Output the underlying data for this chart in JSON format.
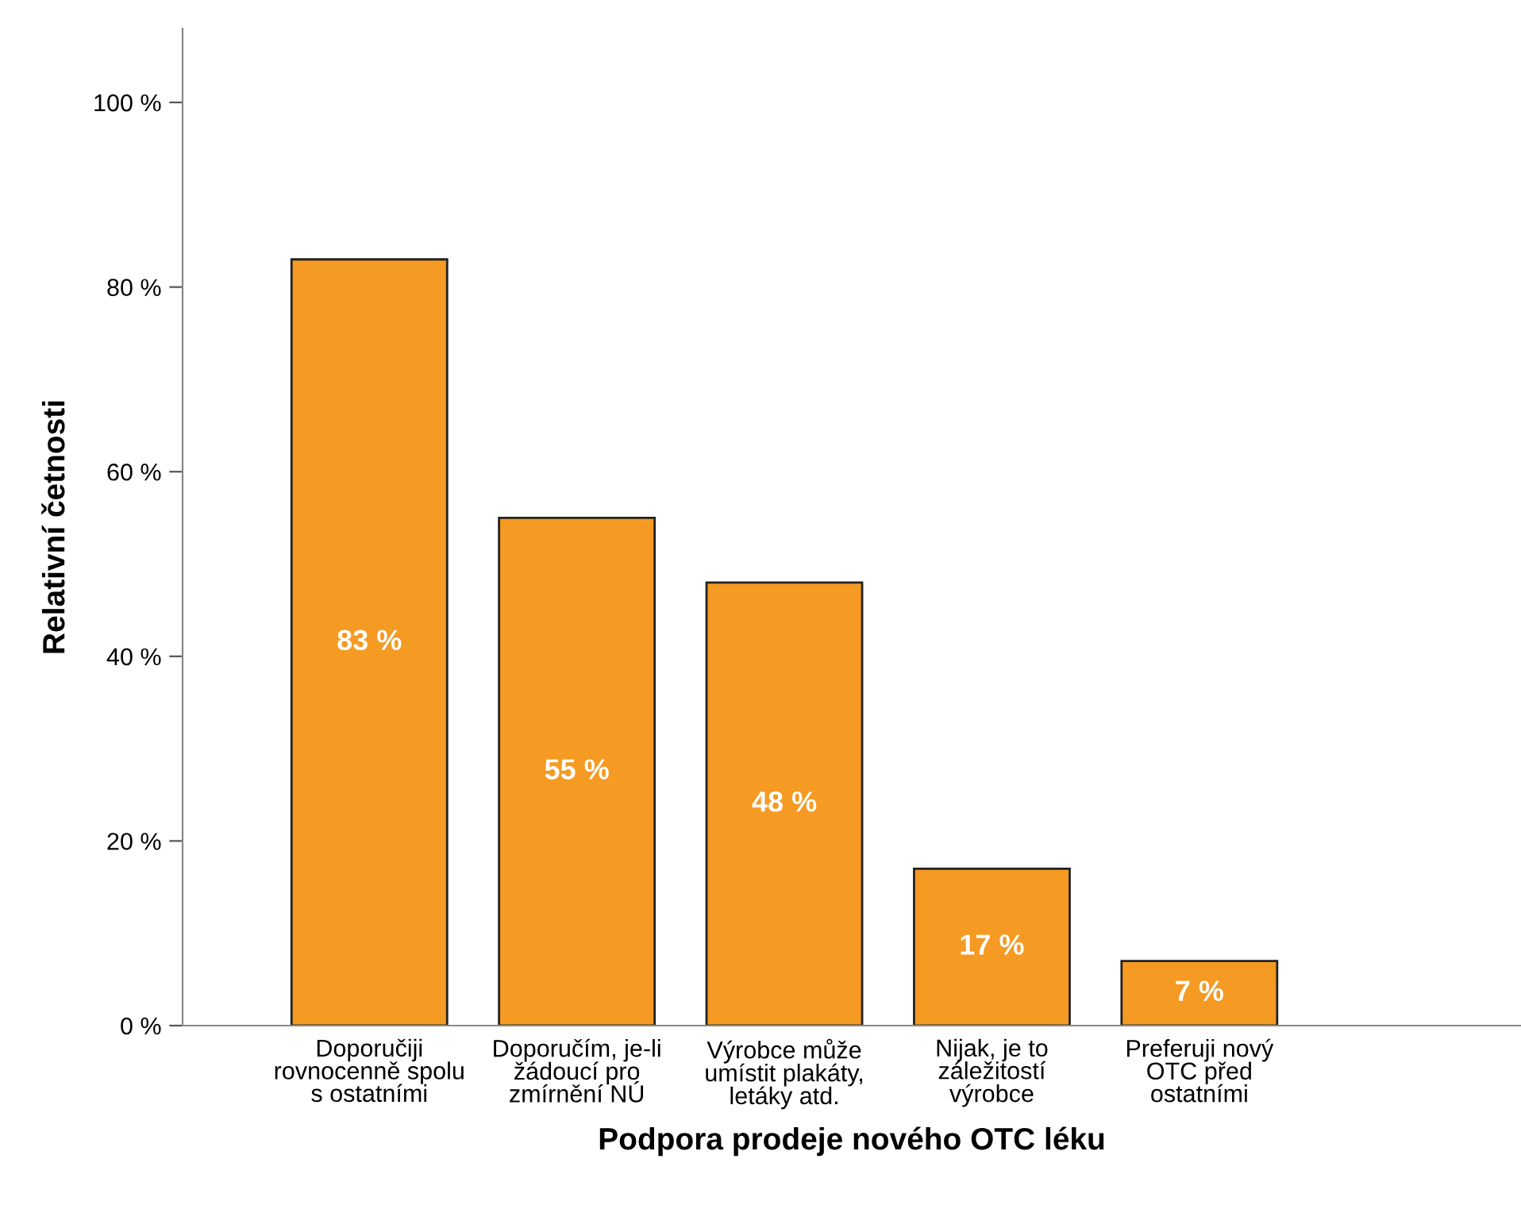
{
  "chart_data": {
    "type": "bar",
    "xlabel": "Podpora prodeje nového OTC léku",
    "ylabel": "Relativní četnosti",
    "categories": [
      "Doporučiji\nrovnocenně spolu\ns ostatními",
      "Doporučím, je-li\nžádoucí pro\nzmírnění NÚ",
      "Výrobce může\numístit plakáty,\nletáky atd.",
      "Nijak, je to\nzáležitostí\nvýrobce",
      "Preferuji nový\nOTC před\nostatními"
    ],
    "values": [
      83,
      55,
      48,
      17,
      7
    ],
    "value_labels": [
      "83 %",
      "55 %",
      "48 %",
      "17 %",
      "7 %"
    ],
    "color": "#f59a23",
    "ylim": [
      0,
      108
    ],
    "yticks": [
      {
        "value": 0,
        "label": "0 %"
      },
      {
        "value": 20,
        "label": "20 %"
      },
      {
        "value": 40,
        "label": "40 %"
      },
      {
        "value": 60,
        "label": "60 %"
      },
      {
        "value": 80,
        "label": "80 %"
      },
      {
        "value": 100,
        "label": "100 %"
      }
    ],
    "grid": false,
    "legend": false
  }
}
